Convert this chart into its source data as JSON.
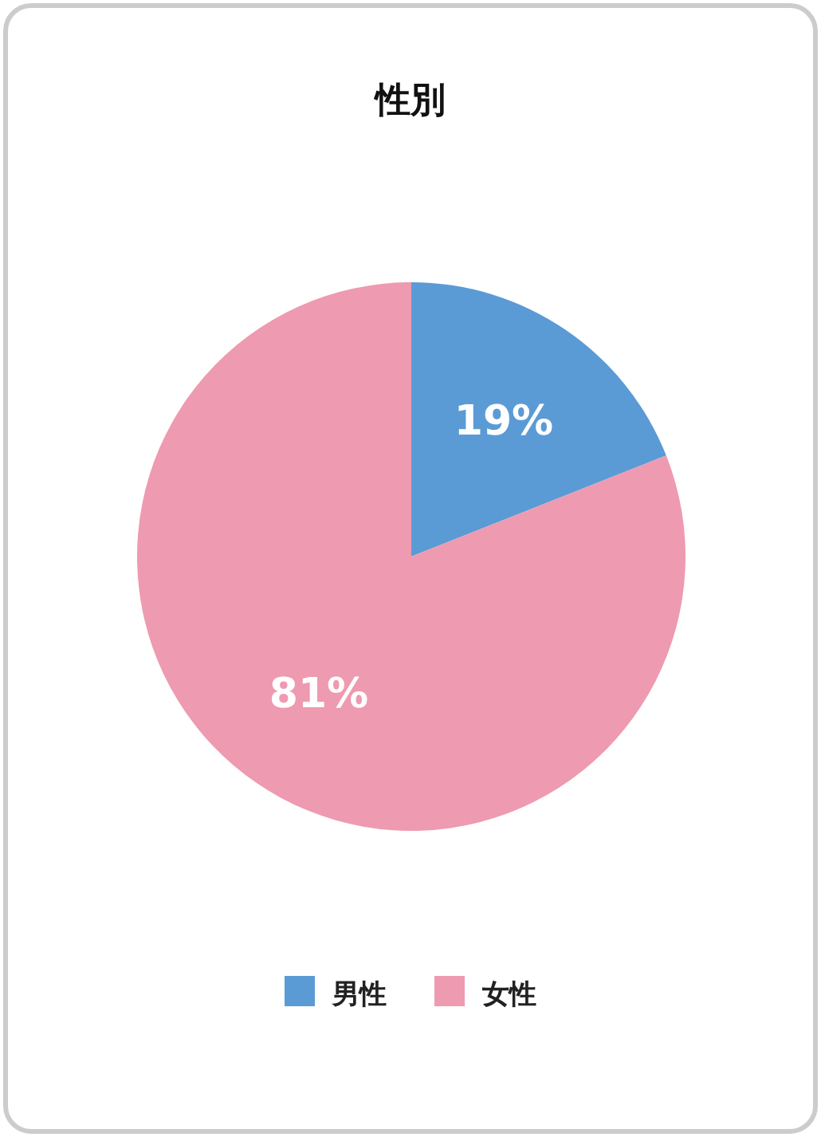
{
  "chart_data": {
    "type": "pie",
    "title": "性別",
    "categories": [
      "男性",
      "女性"
    ],
    "values": [
      19,
      81
    ],
    "colors": [
      "#5b9bd5",
      "#ee9ab0"
    ],
    "value_labels": [
      "19%",
      "81%"
    ],
    "legend": "bottom"
  }
}
